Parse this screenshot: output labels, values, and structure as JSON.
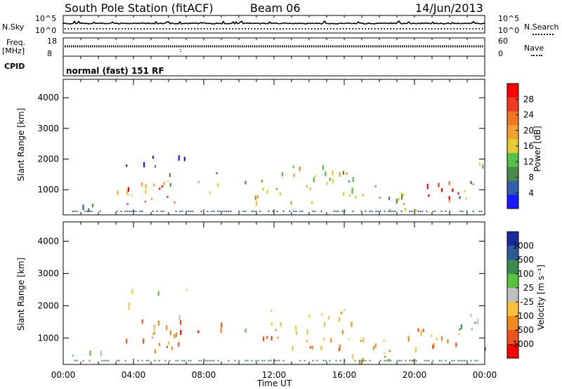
{
  "header": {
    "station": "South Pole Station (fitACF)",
    "beam": "Beam 06",
    "date": "14/Jun/2013"
  },
  "params": {
    "nsky_label": "N.Sky",
    "nsearch_label": "N.Search",
    "freq_label": "Freq.",
    "freq_unit": "[MHz]",
    "nave_label": "Nave",
    "cpid_label": "CPID",
    "mode_text": "normal (fast) 151 RF",
    "nsky_ticks": [
      "10^5",
      "10^0"
    ],
    "nsearch_ticks": [
      "10^5",
      "10^0"
    ],
    "freq_ticks": [
      "18",
      "8"
    ],
    "nave_ticks": [
      "60",
      "0"
    ]
  },
  "colors": {
    "power": [
      "#1a1aff",
      "#2e5fa8",
      "#4a8a4a",
      "#55c04a",
      "#e6cc33",
      "#f2a030",
      "#f07822",
      "#ee3a20",
      "#ff0000"
    ],
    "velocity": [
      "#ff0000",
      "#f0521e",
      "#f08a1e",
      "#ffc03a",
      "#bfbfbf",
      "#5cc040",
      "#3a8a52",
      "#2e5a9a",
      "#1a2aa0"
    ]
  },
  "chart_data": [
    {
      "type": "heatmap",
      "name": "power",
      "xlabel": "",
      "ylabel": "Slant Range [km]",
      "x_range": [
        "00:00",
        "24:00"
      ],
      "ylim": [
        180,
        4600
      ],
      "y_ticks": [
        "4000",
        "3000",
        "2000",
        "1000"
      ],
      "colorbar": {
        "label": "Power [dB]",
        "ticks": [
          "28",
          "24",
          "20",
          "16",
          "12",
          "8",
          "4"
        ],
        "range": [
          0,
          32
        ]
      }
    },
    {
      "type": "heatmap",
      "name": "velocity",
      "xlabel": "Time UT",
      "ylabel": "Slant Range [km]",
      "x_range": [
        "00:00",
        "24:00"
      ],
      "x_ticks": [
        "00:00",
        "04:00",
        "08:00",
        "12:00",
        "16:00",
        "20:00",
        "00:00"
      ],
      "ylim": [
        180,
        4600
      ],
      "y_ticks": [
        "4000",
        "3000",
        "2000",
        "1000"
      ],
      "colorbar": {
        "label": "Velocity [m s⁻¹]",
        "ticks": [
          "1000",
          "500",
          "100",
          "25",
          "-25",
          "-100",
          "-500",
          "-1000"
        ]
      }
    }
  ]
}
